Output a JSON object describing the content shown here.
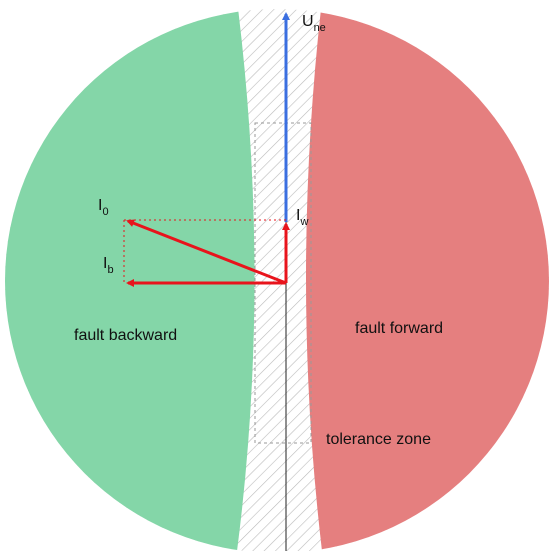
{
  "vectors": [
    {
      "symbol": "U",
      "subscript": "ne"
    },
    {
      "symbol": "I",
      "subscript": "0"
    },
    {
      "symbol": "I",
      "subscript": "w"
    },
    {
      "symbol": "I",
      "subscript": "b"
    }
  ],
  "regions": [
    "fault backward",
    "fault forward",
    "tolerance zone"
  ]
}
